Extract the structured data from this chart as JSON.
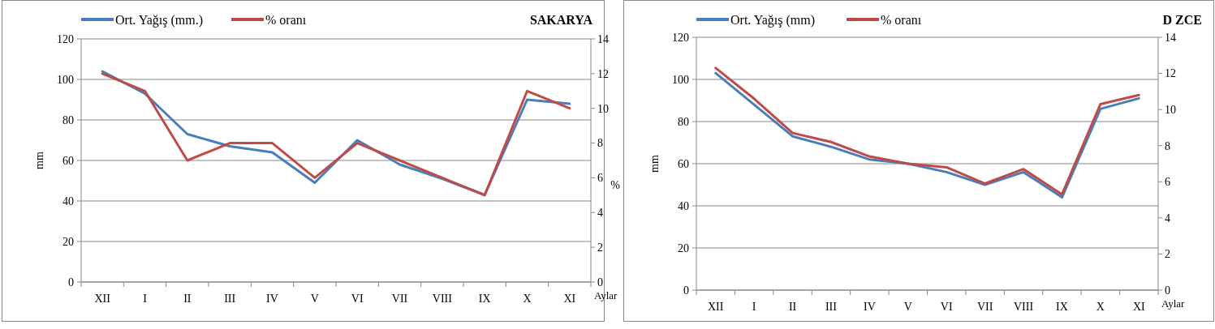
{
  "chart_data": [
    {
      "type": "line",
      "title": "SAKARYA",
      "xlabel": "Aylar",
      "ylabel": "mm",
      "y2label": "%",
      "categories": [
        "XII",
        "I",
        "II",
        "III",
        "IV",
        "V",
        "VI",
        "VII",
        "VIII",
        "IX",
        "X",
        "XI"
      ],
      "series": [
        {
          "name": "Ort. Yağış (mm.)",
          "color": "#4a7ebb",
          "values": [
            104,
            93,
            73,
            67,
            64,
            49,
            70,
            58,
            51,
            43,
            90,
            88
          ]
        },
        {
          "name": "% oranı",
          "color": "#be4b48",
          "axis": "y2",
          "values": [
            12,
            11,
            7,
            8,
            8,
            6,
            8,
            7,
            6,
            5,
            11,
            10
          ]
        }
      ],
      "ylim": [
        0,
        120
      ],
      "yticks": [
        0,
        20,
        40,
        60,
        80,
        100,
        120
      ],
      "y2lim": [
        0,
        14
      ],
      "y2ticks": [
        0,
        2,
        4,
        6,
        8,
        10,
        12,
        14
      ],
      "grid": "y",
      "legend": "top left"
    },
    {
      "type": "line",
      "title": "D ZCE",
      "xlabel": "Aylar",
      "ylabel": "mm",
      "categories": [
        "XII",
        "I",
        "II",
        "III",
        "IV",
        "V",
        "VI",
        "VII",
        "VIII",
        "IX",
        "X",
        "XI"
      ],
      "series": [
        {
          "name": "Ort. Yağış (mm)",
          "color": "#4a7ebb",
          "values": [
            103,
            88,
            73,
            68,
            62,
            60,
            56,
            50,
            56,
            44,
            86,
            91
          ]
        },
        {
          "name": "% oranı",
          "color": "#be4b48",
          "axis": "y2",
          "values": [
            12.3,
            10.6,
            8.7,
            8.2,
            7.4,
            7.0,
            6.8,
            5.9,
            6.7,
            5.3,
            10.3,
            10.8
          ]
        }
      ],
      "ylim": [
        0,
        120
      ],
      "yticks": [
        0,
        20,
        40,
        60,
        80,
        100,
        120
      ],
      "y2lim": [
        0,
        14
      ],
      "y2ticks": [
        0,
        2,
        4,
        6,
        8,
        10,
        12,
        14
      ],
      "grid": "y",
      "legend": "top left"
    }
  ]
}
